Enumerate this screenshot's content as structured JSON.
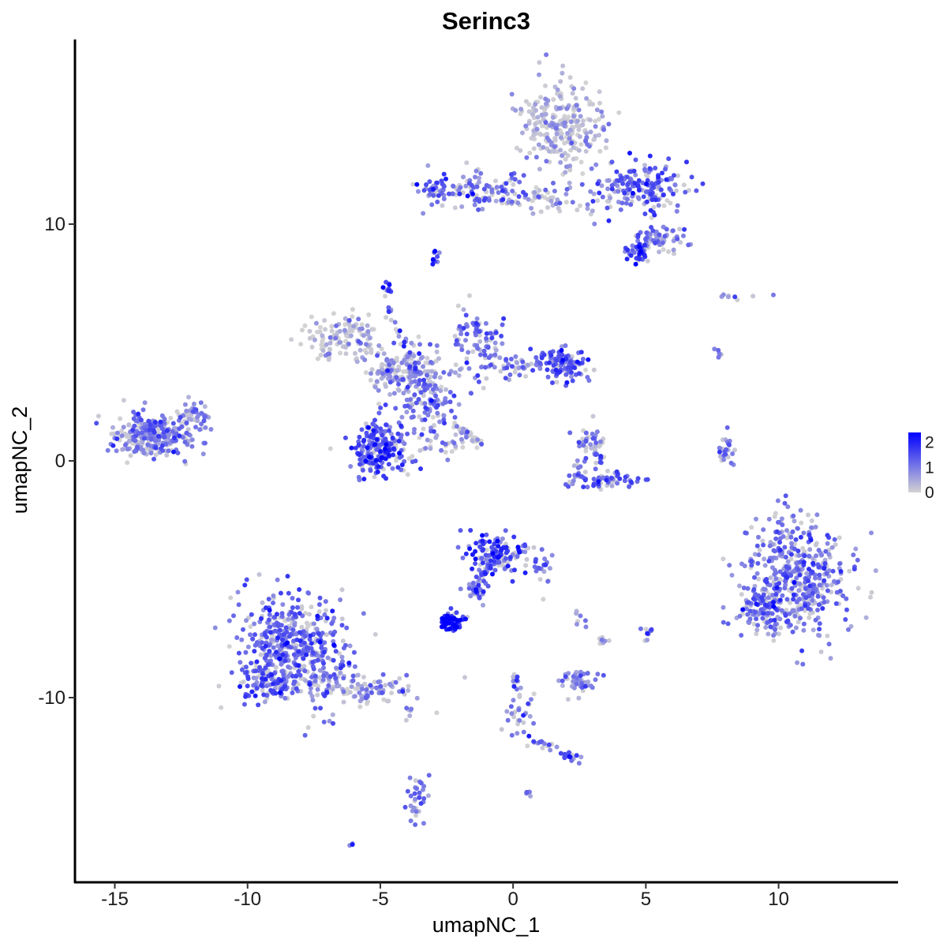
{
  "chart_data": {
    "type": "scatter",
    "title": "Serinc3",
    "xlabel": "umapNC_1",
    "ylabel": "umapNC_2",
    "xlim": [
      -16.5,
      14.5
    ],
    "ylim": [
      -17.8,
      17.8
    ],
    "x_ticks": [
      -15,
      -10,
      -5,
      0,
      5,
      10
    ],
    "x_tick_labels": [
      "-15",
      "-10",
      "-5",
      "0",
      "5",
      "10"
    ],
    "y_ticks": [
      -10,
      0,
      10
    ],
    "y_tick_labels": [
      "-10",
      "0",
      "10"
    ],
    "grid": false,
    "legend": {
      "placement": "right",
      "type": "colorbar",
      "ticks": [
        0,
        1,
        2
      ],
      "tick_labels": [
        "0",
        "1",
        "2"
      ],
      "range": [
        0,
        2.4
      ],
      "low_color": "#d3d3d3",
      "high_color": "#0000ff"
    },
    "series": [
      {
        "clusters": [
          {
            "cx": 1.8,
            "cy": 14.2,
            "sx": 0.75,
            "sy": 0.95,
            "n": 260,
            "expr": 0.35
          },
          {
            "cx": 4.8,
            "cy": 11.6,
            "sx": 0.9,
            "sy": 0.55,
            "n": 190,
            "expr": 1.2
          },
          {
            "cx": -1.5,
            "cy": 11.5,
            "sx": 1.1,
            "sy": 0.35,
            "n": 110,
            "expr": 1.15
          },
          {
            "cx": 1.0,
            "cy": 11.0,
            "sx": 1.2,
            "sy": 0.3,
            "n": 55,
            "expr": 0.7
          },
          {
            "cx": 5.5,
            "cy": 9.4,
            "sx": 0.45,
            "sy": 0.3,
            "n": 70,
            "expr": 0.9
          },
          {
            "cx": 4.7,
            "cy": 8.8,
            "sx": 0.25,
            "sy": 0.25,
            "n": 35,
            "expr": 1.45
          },
          {
            "cx": -3.0,
            "cy": 11.4,
            "sx": 0.3,
            "sy": 0.35,
            "n": 25,
            "expr": 1.3
          },
          {
            "cx": -2.9,
            "cy": 8.6,
            "sx": 0.1,
            "sy": 0.2,
            "n": 10,
            "expr": 1.2
          },
          {
            "cx": -4.7,
            "cy": 7.3,
            "sx": 0.12,
            "sy": 0.15,
            "n": 12,
            "expr": 1.4
          },
          {
            "cx": -6.5,
            "cy": 5.2,
            "sx": 0.7,
            "sy": 0.45,
            "n": 110,
            "expr": 0.35
          },
          {
            "cx": -4.2,
            "cy": 3.9,
            "sx": 0.8,
            "sy": 0.55,
            "n": 130,
            "expr": 0.6
          },
          {
            "cx": -3.3,
            "cy": 2.7,
            "sx": 0.55,
            "sy": 0.9,
            "n": 110,
            "expr": 1.0
          },
          {
            "cx": -1.3,
            "cy": 4.9,
            "sx": 0.45,
            "sy": 0.8,
            "n": 90,
            "expr": 1.1
          },
          {
            "cx": 1.8,
            "cy": 4.1,
            "sx": 0.55,
            "sy": 0.35,
            "n": 110,
            "expr": 1.35
          },
          {
            "cx": 0.2,
            "cy": 4.0,
            "sx": 0.6,
            "sy": 0.25,
            "n": 40,
            "expr": 1.1
          },
          {
            "cx": -5.0,
            "cy": 0.5,
            "sx": 0.55,
            "sy": 0.55,
            "n": 210,
            "expr": 1.4
          },
          {
            "cx": -2.3,
            "cy": 0.8,
            "sx": 0.5,
            "sy": 0.35,
            "n": 25,
            "expr": 0.5
          },
          {
            "cx": -13.5,
            "cy": 1.1,
            "sx": 0.75,
            "sy": 0.45,
            "n": 300,
            "expr": 0.9
          },
          {
            "cx": -12.0,
            "cy": 2.0,
            "sx": 0.35,
            "sy": 0.3,
            "n": 40,
            "expr": 1.0
          },
          {
            "cx": 2.9,
            "cy": 0.5,
            "sx": 0.3,
            "sy": 0.45,
            "n": 55,
            "expr": 0.9
          },
          {
            "cx": 3.3,
            "cy": -0.8,
            "sx": 0.7,
            "sy": 0.18,
            "n": 65,
            "expr": 1.3
          },
          {
            "cx": 8.1,
            "cy": 0.2,
            "sx": 0.2,
            "sy": 0.5,
            "n": 25,
            "expr": 1.0
          },
          {
            "cx": 10.7,
            "cy": -5.0,
            "sx": 0.95,
            "sy": 1.2,
            "n": 480,
            "expr": 1.0
          },
          {
            "cx": 9.2,
            "cy": -6.4,
            "sx": 0.5,
            "sy": 0.35,
            "n": 70,
            "expr": 1.2
          },
          {
            "cx": -0.6,
            "cy": -3.9,
            "sx": 0.55,
            "sy": 0.45,
            "n": 130,
            "expr": 1.5
          },
          {
            "cx": -1.4,
            "cy": -5.3,
            "sx": 0.3,
            "sy": 0.4,
            "n": 30,
            "expr": 1.1
          },
          {
            "cx": 1.1,
            "cy": -4.6,
            "sx": 0.3,
            "sy": 0.5,
            "n": 22,
            "expr": 0.9
          },
          {
            "cx": -2.4,
            "cy": -6.8,
            "sx": 0.22,
            "sy": 0.18,
            "n": 70,
            "expr": 2.1
          },
          {
            "cx": -8.3,
            "cy": -7.8,
            "sx": 1.0,
            "sy": 1.1,
            "n": 450,
            "expr": 1.2
          },
          {
            "cx": -9.3,
            "cy": -9.3,
            "sx": 0.55,
            "sy": 0.45,
            "n": 80,
            "expr": 1.2
          },
          {
            "cx": -5.4,
            "cy": -9.6,
            "sx": 0.9,
            "sy": 0.35,
            "n": 90,
            "expr": 0.6
          },
          {
            "cx": -6.9,
            "cy": -9.0,
            "sx": 0.5,
            "sy": 0.3,
            "n": 40,
            "expr": 0.7
          },
          {
            "cx": 2.4,
            "cy": -9.3,
            "sx": 0.35,
            "sy": 0.25,
            "n": 55,
            "expr": 0.7
          },
          {
            "cx": 3.4,
            "cy": -7.6,
            "sx": 0.12,
            "sy": 0.12,
            "n": 10,
            "expr": 0.2
          },
          {
            "cx": 5.1,
            "cy": -7.3,
            "sx": 0.12,
            "sy": 0.2,
            "n": 12,
            "expr": 1.1
          },
          {
            "cx": 0.4,
            "cy": -10.8,
            "sx": 0.4,
            "sy": 0.6,
            "n": 30,
            "expr": 1.1
          },
          {
            "cx": 2.2,
            "cy": -12.5,
            "sx": 0.25,
            "sy": 0.12,
            "n": 18,
            "expr": 1.2
          },
          {
            "cx": -3.6,
            "cy": -14.4,
            "sx": 0.2,
            "sy": 0.6,
            "n": 35,
            "expr": 1.1
          },
          {
            "cx": -3.9,
            "cy": -10.7,
            "sx": 0.1,
            "sy": 0.15,
            "n": 6,
            "expr": 1.0
          },
          {
            "cx": 0.6,
            "cy": -14.0,
            "sx": 0.06,
            "sy": 0.06,
            "n": 5,
            "expr": 1.2
          },
          {
            "cx": -6.1,
            "cy": -16.2,
            "sx": 0.05,
            "sy": 0.05,
            "n": 3,
            "expr": 0.8
          }
        ],
        "lines": [
          {
            "from": [
              -4.8,
              6.5
            ],
            "to": [
              -2.9,
              2.2
            ],
            "n": 45,
            "expr": 1.1
          },
          {
            "from": [
              -2.3,
              1.6
            ],
            "to": [
              -1.2,
              0.7
            ],
            "n": 30,
            "expr": 0.6
          },
          {
            "from": [
              -5.5,
              3.8
            ],
            "to": [
              -3.5,
              3.3
            ],
            "n": 25,
            "expr": 0.5
          },
          {
            "from": [
              -1.4,
              -5.5
            ],
            "to": [
              -0.9,
              -4.3
            ],
            "n": 25,
            "expr": 1.3
          },
          {
            "from": [
              0.3,
              -10.0
            ],
            "to": [
              0.0,
              -9.0
            ],
            "n": 12,
            "expr": 1.1
          },
          {
            "from": [
              0.6,
              -11.8
            ],
            "to": [
              2.3,
              -12.4
            ],
            "n": 18,
            "expr": 1.0
          },
          {
            "from": [
              2.3,
              -6.0
            ],
            "to": [
              2.6,
              -7.0
            ],
            "n": 8,
            "expr": 1.0
          },
          {
            "from": [
              7.0,
              6.9
            ],
            "to": [
              9.9,
              6.9
            ],
            "n": 8,
            "expr": 0.8
          },
          {
            "from": [
              7.6,
              4.8
            ],
            "to": [
              7.9,
              4.4
            ],
            "n": 6,
            "expr": 1.2
          }
        ]
      }
    ]
  }
}
